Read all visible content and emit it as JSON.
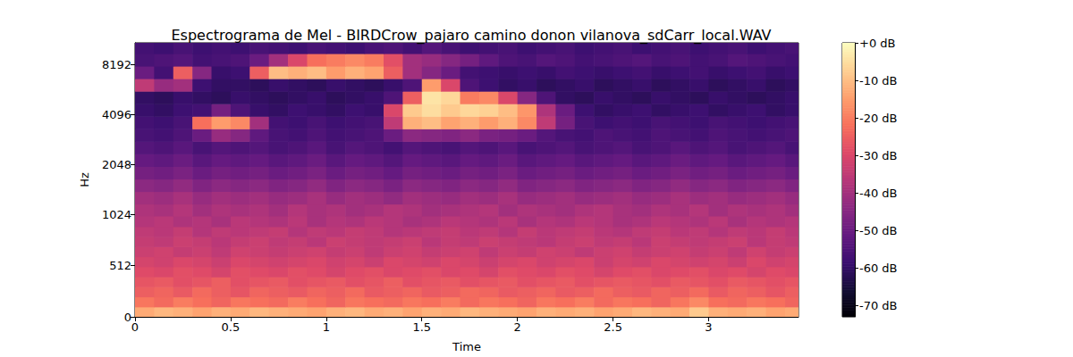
{
  "chart_data": {
    "type": "spectrogram",
    "title": "Espectrograma de Mel - BIRDCrow_pajaro camino donon vilanova_sdCarr_local.WAV",
    "x_label": "Time",
    "y_label": "Hz",
    "log": "y",
    "x": [
      0.05,
      0.15,
      0.25,
      0.35,
      0.45,
      0.55,
      0.65,
      0.75,
      0.85,
      0.95,
      1.05,
      1.15,
      1.25,
      1.35,
      1.45,
      1.55,
      1.65,
      1.75,
      1.85,
      1.95,
      2.05,
      2.15,
      2.25,
      2.35,
      2.45,
      2.55,
      2.65,
      2.75,
      2.85,
      2.95,
      3.05,
      3.15,
      3.25,
      3.35,
      3.45
    ],
    "y": [
      50,
      150,
      250,
      350,
      450,
      550,
      650,
      750,
      850,
      950,
      1090,
      1297,
      1542,
      1834,
      2181,
      2594,
      3084,
      3668,
      4362,
      5187,
      6169,
      7336,
      8724,
      10375
    ],
    "values": [
      [
        -13,
        -11,
        -12,
        -14,
        -12,
        -13,
        -11,
        -12,
        -13,
        -14,
        -12,
        -11,
        -13,
        -12,
        -14,
        -12,
        -13,
        -11,
        -12,
        -13,
        -14,
        -12,
        -13,
        -12,
        -14,
        -13,
        -11,
        -12,
        -13,
        -8,
        -12,
        -13,
        -12,
        -14,
        -13
      ],
      [
        -21,
        -23,
        -20,
        -22,
        -24,
        -21,
        -22,
        -23,
        -20,
        -22,
        -24,
        -21,
        -22,
        -23,
        -21,
        -22,
        -20,
        -23,
        -21,
        -22,
        -24,
        -21,
        -22,
        -20,
        -23,
        -21,
        -22,
        -24,
        -21,
        -18,
        -22,
        -23,
        -21,
        -22,
        -24
      ],
      [
        -25,
        -24,
        -26,
        -23,
        -25,
        -27,
        -24,
        -25,
        -26,
        -24,
        -25,
        -23,
        -26,
        -25,
        -24,
        -26,
        -25,
        -23,
        -24,
        -26,
        -25,
        -24,
        -26,
        -25,
        -23,
        -25,
        -26,
        -24,
        -25,
        -23,
        -26,
        -24,
        -25,
        -27,
        -25
      ],
      [
        -27,
        -26,
        -28,
        -27,
        -25,
        -28,
        -27,
        -26,
        -28,
        -27,
        -26,
        -28,
        -27,
        -25,
        -28,
        -27,
        -26,
        -28,
        -27,
        -26,
        -28,
        -27,
        -26,
        -28,
        -27,
        -26,
        -27,
        -28,
        -26,
        -27,
        -28,
        -26,
        -27,
        -28,
        -27
      ],
      [
        -29,
        -30,
        -28,
        -29,
        -31,
        -28,
        -29,
        -30,
        -28,
        -29,
        -31,
        -29,
        -28,
        -30,
        -29,
        -28,
        -30,
        -29,
        -31,
        -28,
        -29,
        -30,
        -28,
        -29,
        -31,
        -29,
        -28,
        -30,
        -29,
        -28,
        -30,
        -29,
        -31,
        -29,
        -30
      ],
      [
        -31,
        -32,
        -30,
        -31,
        -33,
        -30,
        -31,
        -32,
        -31,
        -30,
        -32,
        -31,
        -33,
        -30,
        -31,
        -32,
        -30,
        -31,
        -33,
        -31,
        -30,
        -32,
        -31,
        -30,
        -33,
        -31,
        -32,
        -30,
        -31,
        -32,
        -31,
        -33,
        -30,
        -32,
        -31
      ],
      [
        -33,
        -32,
        -34,
        -33,
        -35,
        -32,
        -33,
        -34,
        -33,
        -32,
        -34,
        -33,
        -35,
        -33,
        -32,
        -34,
        -33,
        -32,
        -35,
        -33,
        -34,
        -32,
        -33,
        -35,
        -33,
        -32,
        -34,
        -33,
        -32,
        -34,
        -33,
        -35,
        -32,
        -34,
        -33
      ],
      [
        -34,
        -35,
        -33,
        -34,
        -36,
        -34,
        -33,
        -35,
        -34,
        -36,
        -33,
        -34,
        -35,
        -34,
        -33,
        -36,
        -34,
        -35,
        -33,
        -34,
        -35,
        -36,
        -34,
        -33,
        -35,
        -34,
        -36,
        -33,
        -34,
        -35,
        -34,
        -33,
        -36,
        -34,
        -35
      ],
      [
        -35,
        -36,
        -34,
        -37,
        -35,
        -36,
        -35,
        -34,
        -37,
        -35,
        -36,
        -34,
        -35,
        -37,
        -36,
        -35,
        -34,
        -36,
        -35,
        -37,
        -34,
        -36,
        -35,
        -34,
        -36,
        -37,
        -35,
        -34,
        -36,
        -35,
        -37,
        -35,
        -36,
        -34,
        -36
      ],
      [
        -37,
        -36,
        -38,
        -37,
        -39,
        -36,
        -37,
        -38,
        -36,
        -39,
        -37,
        -38,
        -36,
        -37,
        -39,
        -38,
        -36,
        -37,
        -38,
        -36,
        -39,
        -37,
        -38,
        -36,
        -37,
        -39,
        -38,
        -36,
        -37,
        -38,
        -36,
        -39,
        -37,
        -38,
        -37
      ],
      [
        -38,
        -39,
        -37,
        -40,
        -38,
        -39,
        -38,
        -40,
        -37,
        -39,
        -38,
        -40,
        -39,
        -37,
        -38,
        -40,
        -39,
        -38,
        -37,
        -40,
        -38,
        -39,
        -40,
        -38,
        -37,
        -39,
        -40,
        -38,
        -39,
        -37,
        -40,
        -38,
        -39,
        -38,
        -40
      ],
      [
        -40,
        -41,
        -39,
        -42,
        -40,
        -41,
        -40,
        -42,
        -41,
        -39,
        -42,
        -40,
        -41,
        -43,
        -40,
        -41,
        -42,
        -40,
        -41,
        -39,
        -42,
        -41,
        -40,
        -42,
        -41,
        -40,
        -42,
        -41,
        -39,
        -41,
        -40,
        -42,
        -41,
        -40,
        -42
      ],
      [
        -44,
        -45,
        -43,
        -46,
        -44,
        -45,
        -44,
        -46,
        -45,
        -43,
        -46,
        -44,
        -45,
        -47,
        -44,
        -45,
        -46,
        -44,
        -45,
        -43,
        -46,
        -45,
        -44,
        -46,
        -45,
        -44,
        -46,
        -45,
        -43,
        -45,
        -44,
        -46,
        -45,
        -44,
        -46
      ],
      [
        -48,
        -49,
        -47,
        -50,
        -48,
        -49,
        -48,
        -50,
        -49,
        -47,
        -50,
        -48,
        -49,
        -51,
        -48,
        -49,
        -50,
        -48,
        -49,
        -47,
        -50,
        -49,
        -48,
        -50,
        -49,
        -48,
        -50,
        -49,
        -47,
        -49,
        -48,
        -50,
        -49,
        -48,
        -50
      ],
      [
        -51,
        -52,
        -50,
        -53,
        -51,
        -52,
        -51,
        -53,
        -52,
        -50,
        -53,
        -51,
        -52,
        -54,
        -51,
        -52,
        -53,
        -51,
        -52,
        -50,
        -53,
        -52,
        -51,
        -53,
        -52,
        -51,
        -53,
        -52,
        -50,
        -52,
        -51,
        -53,
        -52,
        -51,
        -53
      ],
      [
        -54,
        -55,
        -53,
        -56,
        -54,
        -55,
        -54,
        -56,
        -55,
        -53,
        -56,
        -54,
        -55,
        -57,
        -54,
        -55,
        -56,
        -54,
        -55,
        -53,
        -56,
        -55,
        -54,
        -56,
        -55,
        -54,
        -56,
        -55,
        -53,
        -55,
        -54,
        -56,
        -55,
        -54,
        -56
      ],
      [
        -56,
        -57,
        -55,
        -50,
        -42,
        -45,
        -52,
        -56,
        -57,
        -55,
        -57,
        -56,
        -55,
        -50,
        -44,
        -45,
        -46,
        -44,
        -47,
        -48,
        -50,
        -54,
        -56,
        -57,
        -55,
        -56,
        -57,
        -55,
        -56,
        -57,
        -55,
        -56,
        -57,
        -56,
        -55
      ],
      [
        -57,
        -58,
        -56,
        -22,
        -15,
        -18,
        -40,
        -57,
        -58,
        -56,
        -58,
        -57,
        -56,
        -35,
        -12,
        -10,
        -14,
        -12,
        -15,
        -12,
        -18,
        -35,
        -48,
        -56,
        -58,
        -57,
        -58,
        -56,
        -57,
        -58,
        -56,
        -57,
        -58,
        -57,
        -56
      ],
      [
        -59,
        -60,
        -58,
        -57,
        -48,
        -55,
        -59,
        -60,
        -58,
        -59,
        -60,
        -58,
        -59,
        -30,
        -8,
        -5,
        -8,
        -6,
        -7,
        -10,
        -16,
        -38,
        -50,
        -58,
        -60,
        -59,
        -58,
        -60,
        -59,
        -58,
        -60,
        -59,
        -58,
        -60,
        -59
      ],
      [
        -60,
        -61,
        -59,
        -60,
        -61,
        -59,
        -60,
        -61,
        -60,
        -59,
        -61,
        -60,
        -59,
        -55,
        -25,
        -4,
        -6,
        -20,
        -18,
        -30,
        -45,
        -55,
        -60,
        -61,
        -59,
        -60,
        -61,
        -59,
        -60,
        -61,
        -59,
        -60,
        -61,
        -60,
        -59
      ],
      [
        -35,
        -42,
        -40,
        -58,
        -60,
        -60,
        -61,
        -59,
        -60,
        -61,
        -59,
        -60,
        -61,
        -59,
        -55,
        -15,
        -30,
        -55,
        -58,
        -60,
        -59,
        -61,
        -60,
        -59,
        -61,
        -60,
        -59,
        -61,
        -60,
        -59,
        -61,
        -60,
        -59,
        -61,
        -60
      ],
      [
        -50,
        -57,
        -25,
        -45,
        -59,
        -58,
        -25,
        -10,
        -12,
        -10,
        -15,
        -12,
        -14,
        -25,
        -40,
        -45,
        -50,
        -57,
        -58,
        -59,
        -58,
        -59,
        -57,
        -58,
        -59,
        -58,
        -57,
        -59,
        -58,
        -57,
        -59,
        -58,
        -57,
        -59,
        -58
      ],
      [
        -56,
        -55,
        -54,
        -57,
        -56,
        -55,
        -50,
        -40,
        -30,
        -22,
        -20,
        -18,
        -20,
        -28,
        -40,
        -42,
        -45,
        -48,
        -52,
        -55,
        -56,
        -54,
        -55,
        -57,
        -56,
        -55,
        -54,
        -56,
        -55,
        -57,
        -56,
        -54,
        -55,
        -56,
        -57
      ],
      [
        -57,
        -58,
        -56,
        -58,
        -57,
        -58,
        -56,
        -57,
        -58,
        -56,
        -57,
        -58,
        -56,
        -55,
        -57,
        -54,
        -56,
        -58,
        -57,
        -56,
        -58,
        -57,
        -56,
        -58,
        -57,
        -56,
        -58,
        -57,
        -56,
        -58,
        -57,
        -56,
        -58,
        -57,
        -56
      ]
    ],
    "xlim": [
      0,
      3.47
    ],
    "xticks": [
      0,
      0.5,
      1,
      1.5,
      2,
      2.5,
      3
    ],
    "ylim": [
      0,
      11025
    ],
    "yticks": [
      0,
      512,
      1024,
      2048,
      4096,
      8192
    ],
    "colorbar": {
      "lim": [
        -73,
        0
      ],
      "ticks": [
        {
          "value": 0,
          "label": "+0 dB"
        },
        {
          "value": -10,
          "label": "-10 dB"
        },
        {
          "value": -20,
          "label": "-20 dB"
        },
        {
          "value": -30,
          "label": "-30 dB"
        },
        {
          "value": -40,
          "label": "-40 dB"
        },
        {
          "value": -50,
          "label": "-50 dB"
        },
        {
          "value": -60,
          "label": "-60 dB"
        },
        {
          "value": -70,
          "label": "-70 dB"
        }
      ]
    }
  }
}
